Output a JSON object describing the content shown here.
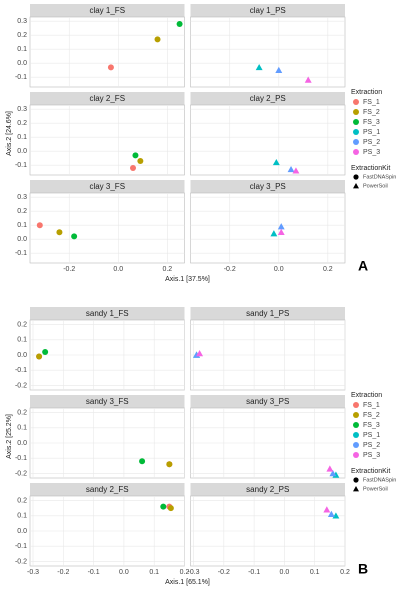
{
  "chart_data": [
    {
      "type": "scatter",
      "panel_label": "A",
      "x_label": "Axis.1  [37.5%]",
      "y_label": "Axis.2  [24.6%]",
      "facets": [
        [
          "clay 1_FS",
          "clay 1_PS"
        ],
        [
          "clay 2_FS",
          "clay 2_PS"
        ],
        [
          "clay 3_FS",
          "clay 3_PS"
        ]
      ],
      "xlim": [
        -0.36,
        0.27
      ],
      "xticks": [
        -0.2,
        {
          "value": 0,
          "label": "0.0"
        },
        0.2
      ],
      "ylim": [
        -0.17,
        0.33
      ],
      "yticks": [
        -0.1,
        {
          "value": 0,
          "label": "0.0"
        },
        0.1,
        0.2,
        0.3
      ],
      "grid": true,
      "legend_title": "Extraction",
      "shape_legend_title": "ExtractionKit",
      "kits": [
        {
          "name": "FastDNASpin",
          "shape": "circle"
        },
        {
          "name": "PowerSoil",
          "shape": "triangle"
        }
      ],
      "series": [
        {
          "name": "FS_1",
          "color": "#F8766D",
          "shape": "circle",
          "column": 0,
          "x": [
            -0.03,
            0.06,
            -0.32
          ],
          "y": [
            -0.03,
            -0.12,
            0.1
          ]
        },
        {
          "name": "FS_2",
          "color": "#B79F00",
          "shape": "circle",
          "column": 0,
          "x": [
            0.16,
            0.09,
            -0.24
          ],
          "y": [
            0.17,
            -0.07,
            0.05
          ]
        },
        {
          "name": "FS_3",
          "color": "#00BA38",
          "shape": "circle",
          "column": 0,
          "x": [
            0.25,
            0.07,
            -0.18
          ],
          "y": [
            0.28,
            -0.03,
            0.02
          ]
        },
        {
          "name": "PS_1",
          "color": "#00BFC4",
          "shape": "triangle",
          "column": 1,
          "x": [
            -0.08,
            -0.01,
            -0.02
          ],
          "y": [
            -0.03,
            -0.08,
            0.04
          ]
        },
        {
          "name": "PS_2",
          "color": "#619CFF",
          "shape": "triangle",
          "column": 1,
          "x": [
            0.0,
            0.05,
            0.01
          ],
          "y": [
            -0.05,
            -0.13,
            0.09
          ]
        },
        {
          "name": "PS_3",
          "color": "#F564E3",
          "shape": "triangle",
          "column": 1,
          "x": [
            0.12,
            0.07,
            0.01
          ],
          "y": [
            -0.12,
            -0.14,
            0.05
          ]
        }
      ]
    },
    {
      "type": "scatter",
      "panel_label": "B",
      "x_label": "Axis.1  [65.1%]",
      "y_label": "Axis.2  [25.2%]",
      "facets": [
        [
          "sandy 1_FS",
          "sandy 1_PS"
        ],
        [
          "sandy 3_FS",
          "sandy 3_PS"
        ],
        [
          "sandy 2_FS",
          "sandy 2_PS"
        ]
      ],
      "xlim": [
        -0.31,
        0.2
      ],
      "xticks": [
        -0.3,
        -0.2,
        -0.1,
        {
          "value": 0,
          "label": "0.0"
        },
        0.1,
        0.2
      ],
      "ylim": [
        -0.23,
        0.23
      ],
      "yticks": [
        -0.2,
        -0.1,
        {
          "value": 0,
          "label": "0.0"
        },
        0.1,
        0.2
      ],
      "grid": true,
      "legend_title": "Extraction",
      "shape_legend_title": "ExtractionKit",
      "kits": [
        {
          "name": "FastDNASpin",
          "shape": "circle"
        },
        {
          "name": "PowerSoil",
          "shape": "triangle"
        }
      ],
      "series": [
        {
          "name": "FS_1",
          "color": "#F8766D",
          "shape": "circle",
          "column": 0,
          "x": [
            -0.28,
            0.15,
            0.15
          ],
          "y": [
            -0.01,
            -0.14,
            0.16
          ]
        },
        {
          "name": "FS_2",
          "color": "#B79F00",
          "shape": "circle",
          "column": 0,
          "x": [
            -0.28,
            0.15,
            0.155
          ],
          "y": [
            -0.01,
            -0.14,
            0.15
          ]
        },
        {
          "name": "FS_3",
          "color": "#00BA38",
          "shape": "circle",
          "column": 0,
          "x": [
            -0.26,
            0.06,
            0.13
          ],
          "y": [
            0.02,
            -0.12,
            0.16
          ]
        },
        {
          "name": "PS_1",
          "color": "#00BFC4",
          "shape": "triangle",
          "column": 1,
          "x": [
            -0.29,
            0.17,
            0.17
          ],
          "y": [
            0.0,
            -0.21,
            0.1
          ]
        },
        {
          "name": "PS_2",
          "color": "#619CFF",
          "shape": "triangle",
          "column": 1,
          "x": [
            -0.29,
            0.16,
            0.155
          ],
          "y": [
            0.0,
            -0.2,
            0.11
          ]
        },
        {
          "name": "PS_3",
          "color": "#F564E3",
          "shape": "triangle",
          "column": 1,
          "x": [
            -0.28,
            0.15,
            0.14
          ],
          "y": [
            0.01,
            -0.17,
            0.14
          ]
        }
      ]
    }
  ]
}
